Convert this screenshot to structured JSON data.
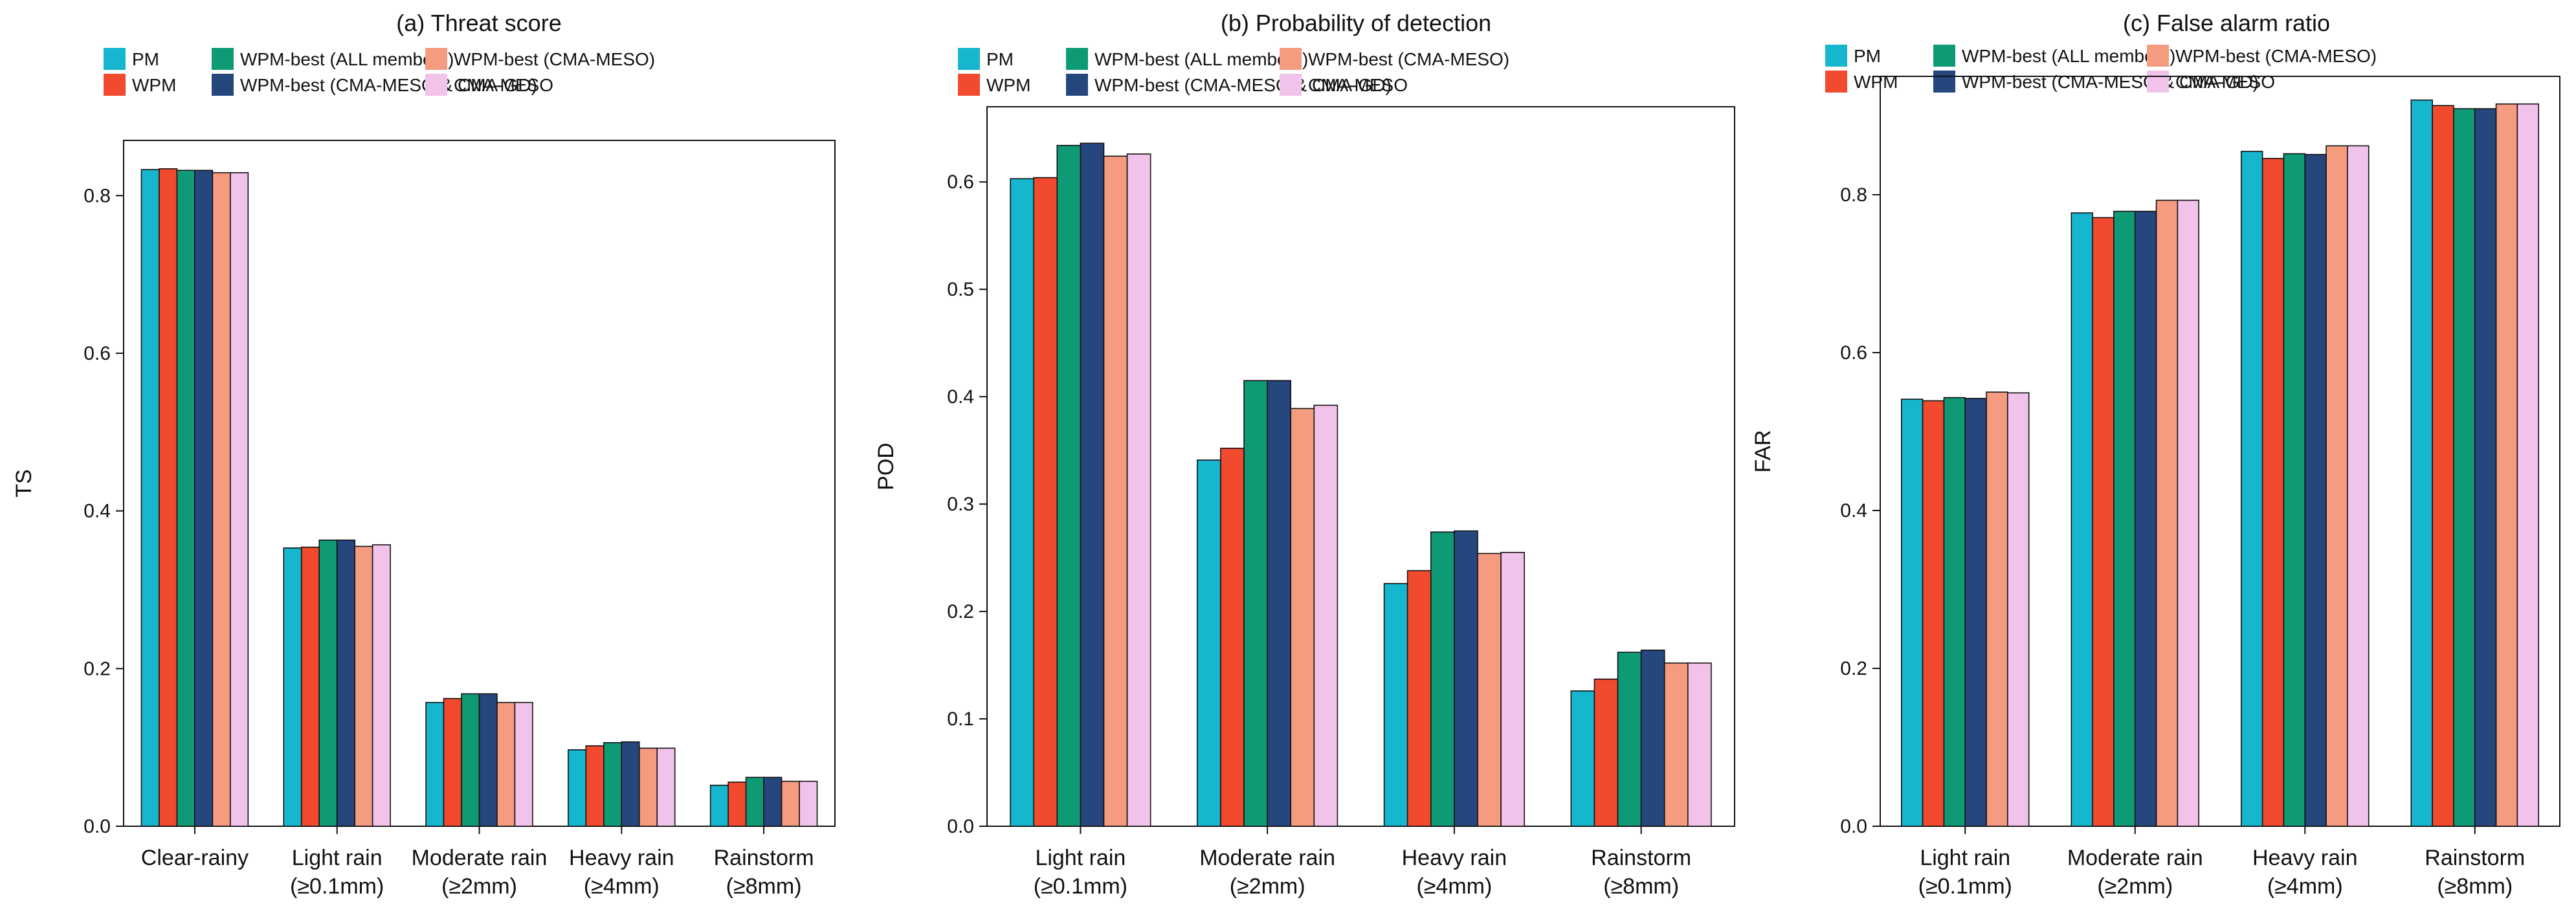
{
  "colors": {
    "PM": "#16b6cf",
    "WPM": "#f24a2e",
    "WPM-best (ALL members)": "#0f9a76",
    "WPM-best (CMA-MESO & CMA-GD)": "#26467e",
    "WPM-best (CMA-MESO)": "#f49b80",
    "CMA-MESO": "#f2c3ea"
  },
  "legend_order": [
    "PM",
    "WPM",
    "WPM-best (ALL members)",
    "WPM-best (CMA-MESO & CMA-GD)",
    "WPM-best (CMA-MESO)",
    "CMA-MESO"
  ],
  "chart_data": [
    {
      "type": "bar",
      "title": "(a) Threat score",
      "ylabel": "TS",
      "ylim": [
        0,
        0.87
      ],
      "yticks": [
        "0.0",
        "0.2",
        "0.4",
        "0.6",
        "0.8"
      ],
      "categories": [
        [
          "Clear-rainy",
          ""
        ],
        [
          "Light rain",
          "(≥0.1mm)"
        ],
        [
          "Moderate rain",
          "(≥2mm)"
        ],
        [
          "Heavy rain",
          "(≥4mm)"
        ],
        [
          "Rainstorm",
          "(≥8mm)"
        ]
      ],
      "series": [
        {
          "name": "PM",
          "values": [
            0.833,
            0.353,
            0.157,
            0.097,
            0.052
          ]
        },
        {
          "name": "WPM",
          "values": [
            0.834,
            0.354,
            0.162,
            0.102,
            0.056
          ]
        },
        {
          "name": "WPM-best (ALL members)",
          "values": [
            0.832,
            0.363,
            0.168,
            0.106,
            0.062
          ]
        },
        {
          "name": "WPM-best (CMA-MESO & CMA-GD)",
          "values": [
            0.832,
            0.363,
            0.168,
            0.107,
            0.062
          ]
        },
        {
          "name": "WPM-best (CMA-MESO)",
          "values": [
            0.829,
            0.355,
            0.157,
            0.099,
            0.057
          ]
        },
        {
          "name": "CMA-MESO",
          "values": [
            0.829,
            0.357,
            0.157,
            0.099,
            0.057
          ]
        }
      ]
    },
    {
      "type": "bar",
      "title": "(b) Probability of detection",
      "ylabel": "POD",
      "ylim": [
        0,
        0.67
      ],
      "yticks": [
        "0.0",
        "0.1",
        "0.2",
        "0.3",
        "0.4",
        "0.5",
        "0.6"
      ],
      "categories": [
        [
          "Light rain",
          "(≥0.1mm)"
        ],
        [
          "Moderate rain",
          "(≥2mm)"
        ],
        [
          "Heavy rain",
          "(≥4mm)"
        ],
        [
          "Rainstorm",
          "(≥8mm)"
        ]
      ],
      "series": [
        {
          "name": "PM",
          "values": [
            0.603,
            0.341,
            0.226,
            0.126
          ]
        },
        {
          "name": "WPM",
          "values": [
            0.604,
            0.352,
            0.238,
            0.137
          ]
        },
        {
          "name": "WPM-best (ALL members)",
          "values": [
            0.634,
            0.415,
            0.274,
            0.162
          ]
        },
        {
          "name": "WPM-best (CMA-MESO & CMA-GD)",
          "values": [
            0.636,
            0.415,
            0.275,
            0.164
          ]
        },
        {
          "name": "WPM-best (CMA-MESO)",
          "values": [
            0.624,
            0.389,
            0.254,
            0.152
          ]
        },
        {
          "name": "CMA-MESO",
          "values": [
            0.626,
            0.392,
            0.255,
            0.152
          ]
        }
      ]
    },
    {
      "type": "bar",
      "title": "(c) False alarm ratio",
      "ylabel": "FAR",
      "ylim": [
        0,
        0.95
      ],
      "yticks": [
        "0.0",
        "0.2",
        "0.4",
        "0.6",
        "0.8"
      ],
      "categories": [
        [
          "Light rain",
          "(≥0.1mm)"
        ],
        [
          "Moderate rain",
          "(≥2mm)"
        ],
        [
          "Heavy rain",
          "(≥4mm)"
        ],
        [
          "Rainstorm",
          "(≥8mm)"
        ]
      ],
      "series": [
        {
          "name": "PM",
          "values": [
            0.541,
            0.777,
            0.855,
            0.92
          ]
        },
        {
          "name": "WPM",
          "values": [
            0.539,
            0.771,
            0.846,
            0.913
          ]
        },
        {
          "name": "WPM-best (ALL members)",
          "values": [
            0.543,
            0.779,
            0.852,
            0.909
          ]
        },
        {
          "name": "WPM-best (CMA-MESO & CMA-GD)",
          "values": [
            0.542,
            0.779,
            0.851,
            0.909
          ]
        },
        {
          "name": "WPM-best (CMA-MESO)",
          "values": [
            0.55,
            0.793,
            0.862,
            0.915
          ]
        },
        {
          "name": "CMA-MESO",
          "values": [
            0.549,
            0.793,
            0.862,
            0.915
          ]
        }
      ]
    }
  ]
}
